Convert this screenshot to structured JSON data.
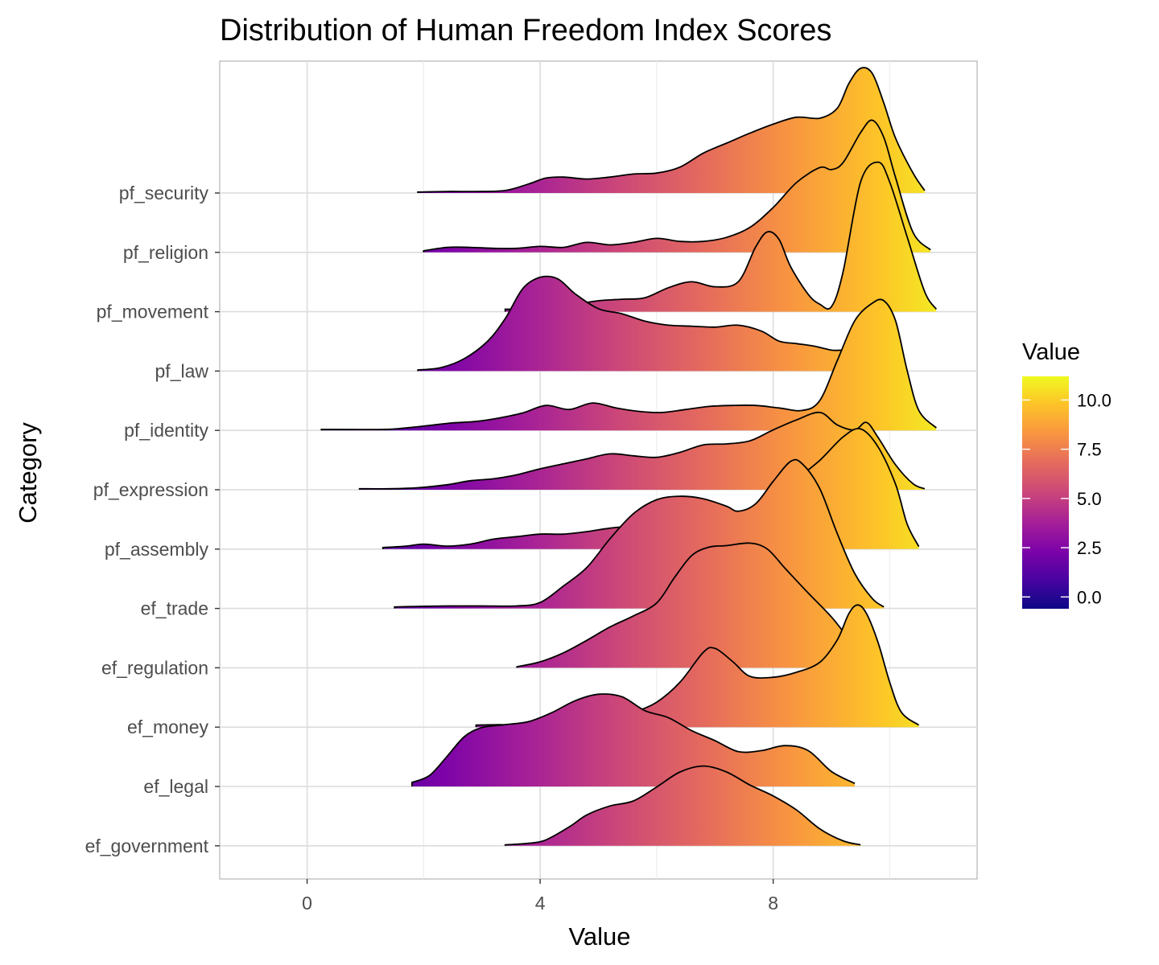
{
  "chart_data": {
    "type": "ridgeline",
    "title": "Distribution of Human Freedom Index Scores",
    "xlabel": "Value",
    "ylabel": "Category",
    "xlim": [
      -1.5,
      11.5
    ],
    "x_ticks": [
      0,
      4,
      8
    ],
    "legend": {
      "title": "Value",
      "placement": "right",
      "range": [
        -0.6,
        11.2
      ],
      "ticks": [
        0.0,
        2.5,
        5.0,
        7.5,
        10.0
      ],
      "tick_labels": [
        "0.0",
        "2.5",
        "5.0",
        "7.5",
        "10.0"
      ],
      "colorscale": "plasma"
    },
    "grid": true,
    "series": [
      {
        "name": "ef_government",
        "points": [
          [
            3.4,
            0.02
          ],
          [
            3.8,
            0.05
          ],
          [
            4.1,
            0.12
          ],
          [
            4.5,
            0.38
          ],
          [
            4.8,
            0.62
          ],
          [
            5.2,
            0.8
          ],
          [
            5.6,
            0.9
          ],
          [
            6.0,
            1.18
          ],
          [
            6.4,
            1.48
          ],
          [
            6.8,
            1.6
          ],
          [
            7.2,
            1.48
          ],
          [
            7.6,
            1.22
          ],
          [
            8.0,
            1.0
          ],
          [
            8.4,
            0.72
          ],
          [
            8.8,
            0.34
          ],
          [
            9.2,
            0.1
          ],
          [
            9.5,
            0.02
          ]
        ]
      },
      {
        "name": "ef_legal",
        "points": [
          [
            1.8,
            0.08
          ],
          [
            2.1,
            0.22
          ],
          [
            2.4,
            0.6
          ],
          [
            2.7,
            1.0
          ],
          [
            3.0,
            1.18
          ],
          [
            3.4,
            1.24
          ],
          [
            3.8,
            1.3
          ],
          [
            4.2,
            1.48
          ],
          [
            4.6,
            1.72
          ],
          [
            5.0,
            1.85
          ],
          [
            5.4,
            1.8
          ],
          [
            5.8,
            1.52
          ],
          [
            6.2,
            1.38
          ],
          [
            6.6,
            1.12
          ],
          [
            7.0,
            0.92
          ],
          [
            7.4,
            0.7
          ],
          [
            7.8,
            0.72
          ],
          [
            8.2,
            0.82
          ],
          [
            8.6,
            0.72
          ],
          [
            9.0,
            0.3
          ],
          [
            9.4,
            0.06
          ]
        ]
      },
      {
        "name": "ef_money",
        "points": [
          [
            2.9,
            0.04
          ],
          [
            3.3,
            0.05
          ],
          [
            3.7,
            0.04
          ],
          [
            4.2,
            0.04
          ],
          [
            4.8,
            0.08
          ],
          [
            5.2,
            0.18
          ],
          [
            5.6,
            0.3
          ],
          [
            6.0,
            0.5
          ],
          [
            6.4,
            0.9
          ],
          [
            6.8,
            1.5
          ],
          [
            7.0,
            1.58
          ],
          [
            7.3,
            1.32
          ],
          [
            7.6,
            1.02
          ],
          [
            8.0,
            1.0
          ],
          [
            8.4,
            1.1
          ],
          [
            8.8,
            1.3
          ],
          [
            9.1,
            1.75
          ],
          [
            9.3,
            2.28
          ],
          [
            9.45,
            2.45
          ],
          [
            9.6,
            2.28
          ],
          [
            9.8,
            1.7
          ],
          [
            10.0,
            0.9
          ],
          [
            10.2,
            0.3
          ],
          [
            10.5,
            0.04
          ]
        ]
      },
      {
        "name": "ef_regulation",
        "points": [
          [
            3.6,
            0.02
          ],
          [
            4.0,
            0.12
          ],
          [
            4.4,
            0.3
          ],
          [
            4.8,
            0.55
          ],
          [
            5.2,
            0.82
          ],
          [
            5.6,
            1.04
          ],
          [
            6.0,
            1.3
          ],
          [
            6.3,
            1.8
          ],
          [
            6.6,
            2.25
          ],
          [
            6.9,
            2.42
          ],
          [
            7.2,
            2.45
          ],
          [
            7.6,
            2.5
          ],
          [
            7.9,
            2.38
          ],
          [
            8.2,
            2.0
          ],
          [
            8.6,
            1.5
          ],
          [
            9.0,
            1.02
          ],
          [
            9.3,
            0.58
          ],
          [
            9.6,
            0.2
          ],
          [
            9.9,
            0.03
          ]
        ]
      },
      {
        "name": "ef_trade",
        "points": [
          [
            1.5,
            0.03
          ],
          [
            1.9,
            0.04
          ],
          [
            2.4,
            0.05
          ],
          [
            3.0,
            0.05
          ],
          [
            3.6,
            0.05
          ],
          [
            4.0,
            0.12
          ],
          [
            4.4,
            0.45
          ],
          [
            4.8,
            0.82
          ],
          [
            5.2,
            1.4
          ],
          [
            5.6,
            1.9
          ],
          [
            6.0,
            2.18
          ],
          [
            6.4,
            2.25
          ],
          [
            6.8,
            2.2
          ],
          [
            7.2,
            2.05
          ],
          [
            7.4,
            1.95
          ],
          [
            7.7,
            2.1
          ],
          [
            8.0,
            2.55
          ],
          [
            8.3,
            2.95
          ],
          [
            8.5,
            2.9
          ],
          [
            8.8,
            2.4
          ],
          [
            9.1,
            1.5
          ],
          [
            9.4,
            0.7
          ],
          [
            9.7,
            0.2
          ],
          [
            9.9,
            0.03
          ]
        ]
      },
      {
        "name": "pf_assembly",
        "points": [
          [
            1.3,
            0.03
          ],
          [
            1.7,
            0.06
          ],
          [
            2.0,
            0.1
          ],
          [
            2.4,
            0.06
          ],
          [
            2.8,
            0.1
          ],
          [
            3.2,
            0.2
          ],
          [
            3.6,
            0.25
          ],
          [
            4.0,
            0.3
          ],
          [
            4.4,
            0.3
          ],
          [
            4.8,
            0.35
          ],
          [
            5.2,
            0.42
          ],
          [
            5.6,
            0.45
          ],
          [
            6.0,
            0.35
          ],
          [
            6.4,
            0.3
          ],
          [
            6.8,
            0.32
          ],
          [
            7.2,
            0.42
          ],
          [
            7.6,
            0.62
          ],
          [
            8.0,
            1.0
          ],
          [
            8.4,
            1.4
          ],
          [
            8.8,
            1.78
          ],
          [
            9.2,
            2.25
          ],
          [
            9.5,
            2.41
          ],
          [
            9.8,
            2.05
          ],
          [
            10.1,
            1.3
          ],
          [
            10.3,
            0.5
          ],
          [
            10.5,
            0.05
          ]
        ]
      },
      {
        "name": "pf_expression",
        "points": [
          [
            0.9,
            0.02
          ],
          [
            1.4,
            0.02
          ],
          [
            1.9,
            0.04
          ],
          [
            2.4,
            0.1
          ],
          [
            2.8,
            0.18
          ],
          [
            3.2,
            0.22
          ],
          [
            3.6,
            0.3
          ],
          [
            4.0,
            0.42
          ],
          [
            4.4,
            0.52
          ],
          [
            4.8,
            0.62
          ],
          [
            5.2,
            0.72
          ],
          [
            5.6,
            0.68
          ],
          [
            6.0,
            0.65
          ],
          [
            6.4,
            0.75
          ],
          [
            6.8,
            0.9
          ],
          [
            7.2,
            0.92
          ],
          [
            7.6,
            0.98
          ],
          [
            8.0,
            1.2
          ],
          [
            8.4,
            1.4
          ],
          [
            8.8,
            1.55
          ],
          [
            9.1,
            1.3
          ],
          [
            9.4,
            1.2
          ],
          [
            9.6,
            1.35
          ],
          [
            9.8,
            1.05
          ],
          [
            10.1,
            0.5
          ],
          [
            10.4,
            0.12
          ],
          [
            10.6,
            0.02
          ]
        ]
      },
      {
        "name": "pf_identity",
        "points": [
          [
            0.25,
            0.02
          ],
          [
            0.35,
            0.02
          ],
          [
            1.3,
            0.02
          ],
          [
            1.7,
            0.05
          ],
          [
            2.1,
            0.1
          ],
          [
            2.5,
            0.15
          ],
          [
            2.9,
            0.18
          ],
          [
            3.3,
            0.25
          ],
          [
            3.7,
            0.35
          ],
          [
            4.1,
            0.5
          ],
          [
            4.5,
            0.42
          ],
          [
            4.9,
            0.55
          ],
          [
            5.3,
            0.45
          ],
          [
            5.7,
            0.38
          ],
          [
            6.1,
            0.36
          ],
          [
            6.5,
            0.42
          ],
          [
            6.9,
            0.48
          ],
          [
            7.3,
            0.5
          ],
          [
            7.7,
            0.5
          ],
          [
            8.1,
            0.45
          ],
          [
            8.5,
            0.4
          ],
          [
            8.8,
            0.6
          ],
          [
            9.1,
            1.4
          ],
          [
            9.4,
            2.2
          ],
          [
            9.7,
            2.55
          ],
          [
            9.9,
            2.6
          ],
          [
            10.1,
            2.2
          ],
          [
            10.3,
            1.2
          ],
          [
            10.5,
            0.4
          ],
          [
            10.8,
            0.05
          ]
        ]
      },
      {
        "name": "pf_law",
        "points": [
          [
            1.9,
            0.02
          ],
          [
            2.3,
            0.07
          ],
          [
            2.7,
            0.25
          ],
          [
            3.1,
            0.6
          ],
          [
            3.4,
            1.05
          ],
          [
            3.7,
            1.65
          ],
          [
            4.0,
            1.88
          ],
          [
            4.3,
            1.85
          ],
          [
            4.6,
            1.55
          ],
          [
            5.0,
            1.25
          ],
          [
            5.4,
            1.15
          ],
          [
            5.8,
            1.0
          ],
          [
            6.2,
            0.92
          ],
          [
            6.6,
            0.9
          ],
          [
            7.0,
            0.88
          ],
          [
            7.4,
            0.92
          ],
          [
            7.8,
            0.8
          ],
          [
            8.1,
            0.6
          ],
          [
            8.4,
            0.55
          ],
          [
            8.7,
            0.5
          ],
          [
            9.0,
            0.42
          ],
          [
            9.3,
            0.4
          ],
          [
            9.6,
            0.2
          ],
          [
            9.9,
            0.05
          ]
        ]
      },
      {
        "name": "pf_movement",
        "points": [
          [
            3.4,
            0.05
          ],
          [
            3.8,
            0.05
          ],
          [
            4.2,
            0.1
          ],
          [
            4.6,
            0.15
          ],
          [
            5.0,
            0.22
          ],
          [
            5.4,
            0.25
          ],
          [
            5.8,
            0.28
          ],
          [
            6.2,
            0.48
          ],
          [
            6.6,
            0.6
          ],
          [
            7.0,
            0.5
          ],
          [
            7.4,
            0.6
          ],
          [
            7.7,
            1.3
          ],
          [
            7.9,
            1.6
          ],
          [
            8.1,
            1.45
          ],
          [
            8.3,
            0.9
          ],
          [
            8.6,
            0.35
          ],
          [
            8.8,
            0.15
          ],
          [
            9.0,
            0.1
          ],
          [
            9.2,
            0.8
          ],
          [
            9.5,
            2.6
          ],
          [
            9.8,
            3.0
          ],
          [
            10.0,
            2.6
          ],
          [
            10.3,
            1.5
          ],
          [
            10.6,
            0.4
          ],
          [
            10.8,
            0.05
          ]
        ]
      },
      {
        "name": "pf_religion",
        "points": [
          [
            2.0,
            0.03
          ],
          [
            2.4,
            0.1
          ],
          [
            2.8,
            0.1
          ],
          [
            3.2,
            0.08
          ],
          [
            3.6,
            0.08
          ],
          [
            4.0,
            0.12
          ],
          [
            4.4,
            0.1
          ],
          [
            4.8,
            0.2
          ],
          [
            5.2,
            0.15
          ],
          [
            5.6,
            0.2
          ],
          [
            6.0,
            0.28
          ],
          [
            6.4,
            0.22
          ],
          [
            6.8,
            0.22
          ],
          [
            7.2,
            0.3
          ],
          [
            7.6,
            0.5
          ],
          [
            8.0,
            0.9
          ],
          [
            8.4,
            1.4
          ],
          [
            8.8,
            1.7
          ],
          [
            9.0,
            1.66
          ],
          [
            9.2,
            1.8
          ],
          [
            9.5,
            2.4
          ],
          [
            9.7,
            2.65
          ],
          [
            9.9,
            2.3
          ],
          [
            10.1,
            1.5
          ],
          [
            10.4,
            0.4
          ],
          [
            10.7,
            0.05
          ]
        ]
      },
      {
        "name": "pf_security",
        "points": [
          [
            1.9,
            0.02
          ],
          [
            2.4,
            0.03
          ],
          [
            2.9,
            0.03
          ],
          [
            3.4,
            0.05
          ],
          [
            3.8,
            0.18
          ],
          [
            4.1,
            0.3
          ],
          [
            4.4,
            0.32
          ],
          [
            4.8,
            0.28
          ],
          [
            5.2,
            0.32
          ],
          [
            5.6,
            0.38
          ],
          [
            6.0,
            0.4
          ],
          [
            6.4,
            0.52
          ],
          [
            6.8,
            0.8
          ],
          [
            7.2,
            1.0
          ],
          [
            7.6,
            1.2
          ],
          [
            8.0,
            1.38
          ],
          [
            8.4,
            1.52
          ],
          [
            8.8,
            1.5
          ],
          [
            9.1,
            1.7
          ],
          [
            9.3,
            2.2
          ],
          [
            9.5,
            2.5
          ],
          [
            9.7,
            2.4
          ],
          [
            9.9,
            1.8
          ],
          [
            10.1,
            1.1
          ],
          [
            10.4,
            0.4
          ],
          [
            10.6,
            0.05
          ]
        ]
      }
    ]
  }
}
